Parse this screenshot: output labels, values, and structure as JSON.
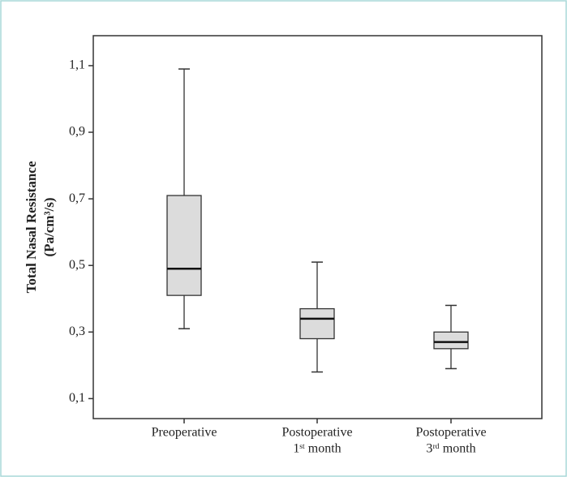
{
  "chart_data": {
    "type": "box",
    "y_label": [
      "Total Nasal Resistance",
      "(Pa/cm³/s)"
    ],
    "categories": [
      [
        "Preoperative"
      ],
      [
        "Postoperative",
        "1ˢᵗ month"
      ],
      [
        "Postoperative",
        "3ʳᵈ month"
      ]
    ],
    "min": [
      0.31,
      0.18,
      0.19
    ],
    "q1": [
      0.41,
      0.28,
      0.25
    ],
    "median": [
      0.49,
      0.34,
      0.27
    ],
    "q3": [
      0.71,
      0.37,
      0.3
    ],
    "max": [
      1.09,
      0.51,
      0.38
    ],
    "color": "#dcdcdc",
    "ylim": [
      0.04,
      1.19
    ],
    "yticks": [
      {
        "value": 0.1,
        "label": "0,1"
      },
      {
        "value": 0.3,
        "label": "0,3"
      },
      {
        "value": 0.5,
        "label": "0,5"
      },
      {
        "value": 0.7,
        "label": "0,7"
      },
      {
        "value": 0.9,
        "label": "0,9"
      },
      {
        "value": 1.1,
        "label": "1,1"
      }
    ]
  }
}
